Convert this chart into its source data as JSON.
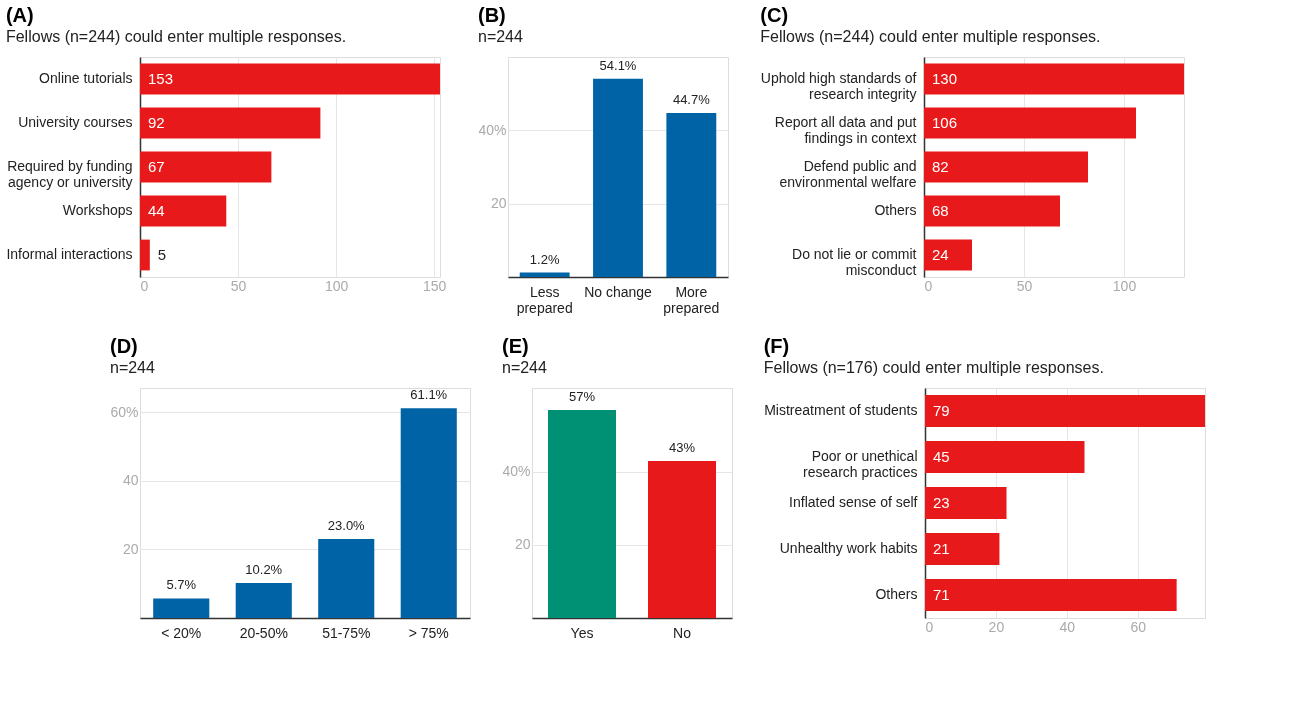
{
  "chart_data": [
    {
      "type": "bar",
      "title": "(A)",
      "subtitle": "Fellows (n=244) could enter multiple responses.",
      "orientation": "horizontal",
      "categories": [
        "Online tutorials",
        "University courses",
        "Required by funding agency or university",
        "Workshops",
        "Informal interactions"
      ],
      "values": [
        153,
        92,
        67,
        44,
        5
      ],
      "color": "#e8191a",
      "xlim": [
        0,
        153
      ],
      "xticks": [
        0,
        50,
        100,
        150
      ],
      "grid": "x",
      "data_labels": true
    },
    {
      "type": "bar",
      "title": "(B)",
      "subtitle": "n=244",
      "categories": [
        "Less prepared",
        "No change",
        "More prepared"
      ],
      "values": [
        1.2,
        54.1,
        44.7
      ],
      "color": "#0063a6",
      "ylim": [
        0,
        60
      ],
      "yticks": [
        {
          "value": 20,
          "label": "20"
        },
        {
          "value": 40,
          "label": "40%"
        }
      ],
      "grid": "y",
      "value_labels": [
        "1.2%",
        "54.1%",
        "44.7%"
      ]
    },
    {
      "type": "bar",
      "title": "(C)",
      "subtitle": "Fellows (n=244) could enter multiple responses.",
      "orientation": "horizontal",
      "categories": [
        "Uphold high standards of research integrity",
        "Report all data and put findings in context",
        "Defend public and environmental welfare",
        "Others",
        "Do not lie or commit misconduct"
      ],
      "values": [
        130,
        106,
        82,
        68,
        24
      ],
      "color": "#e8191a",
      "xlim": [
        0,
        130
      ],
      "xticks": [
        0,
        50,
        100
      ],
      "grid": "x",
      "data_labels": true
    },
    {
      "type": "bar",
      "title": "(D)",
      "subtitle": "n=244",
      "categories": [
        "< 20%",
        "20-50%",
        "51-75%",
        "> 75%"
      ],
      "values": [
        5.7,
        10.2,
        23.0,
        61.1
      ],
      "color": "#0063a6",
      "ylim": [
        0,
        67
      ],
      "yticks": [
        {
          "value": 20,
          "label": "20"
        },
        {
          "value": 40,
          "label": "40"
        },
        {
          "value": 60,
          "label": "60%"
        }
      ],
      "grid": "y",
      "value_labels": [
        "5.7%",
        "10.2%",
        "23.0%",
        "61.1%"
      ]
    },
    {
      "type": "bar",
      "title": "(E)",
      "subtitle": "n=244",
      "categories": [
        "Yes",
        "No"
      ],
      "values": [
        57,
        43
      ],
      "colors": [
        "#009175",
        "#e8191a"
      ],
      "ylim": [
        0,
        63
      ],
      "yticks": [
        {
          "value": 20,
          "label": "20"
        },
        {
          "value": 40,
          "label": "40%"
        }
      ],
      "grid": "y",
      "value_labels": [
        "57%",
        "43%"
      ]
    },
    {
      "type": "bar",
      "title": "(F)",
      "subtitle": "Fellows (n=176) could enter multiple responses.",
      "orientation": "horizontal",
      "categories": [
        "Mistreatment of students",
        "Poor or unethical research practices",
        "Inflated sense of self",
        "Unhealthy work habits",
        "Others"
      ],
      "values": [
        79,
        45,
        23,
        21,
        71
      ],
      "color": "#e8191a",
      "xlim": [
        0,
        79
      ],
      "xticks": [
        0,
        20,
        40,
        60
      ],
      "grid": "x",
      "data_labels": true
    }
  ]
}
